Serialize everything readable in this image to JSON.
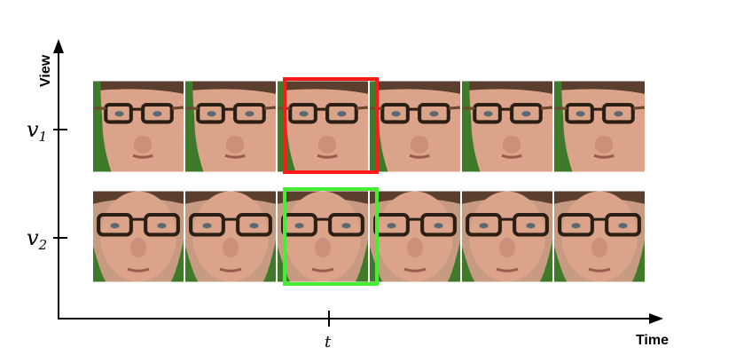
{
  "axes": {
    "y_title": "View",
    "x_title": "Time",
    "rows": [
      {
        "symbol": "v",
        "subscript": "1"
      },
      {
        "symbol": "v",
        "subscript": "2"
      }
    ],
    "time_marker": "t"
  },
  "frames_per_row": 6,
  "highlighted_frame_index": 2,
  "colors": {
    "axis": "#000000",
    "highlight_row1": "#ff1a1a",
    "highlight_row2": "#44ee33",
    "background_green": "#3f7a2a",
    "skin": "#e0a88c",
    "glasses": "#2b1e14"
  }
}
